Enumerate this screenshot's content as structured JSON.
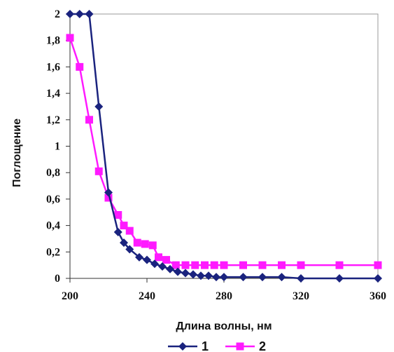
{
  "chart_data": {
    "type": "line",
    "title": "",
    "xlabel": "Длина волны, нм",
    "ylabel": "Поглощение",
    "xlim": [
      200,
      360
    ],
    "ylim": [
      0,
      2
    ],
    "x_ticks": [
      "200",
      "240",
      "280",
      "320",
      "360"
    ],
    "y_ticks": [
      "0",
      "0,2",
      "0,4",
      "0,6",
      "0,8",
      "1",
      "1,2",
      "1,4",
      "1,6",
      "1,8",
      "2"
    ],
    "grid": false,
    "legend_position": "bottom",
    "series": [
      {
        "name": "1",
        "color": "#1a237e",
        "marker": "diamond",
        "points": [
          [
            200,
            2.0
          ],
          [
            205,
            2.0
          ],
          [
            210,
            2.0
          ],
          [
            215,
            1.3
          ],
          [
            220,
            0.65
          ],
          [
            225,
            0.35
          ],
          [
            228,
            0.27
          ],
          [
            231,
            0.22
          ],
          [
            236,
            0.16
          ],
          [
            240,
            0.14
          ],
          [
            244,
            0.11
          ],
          [
            248,
            0.09
          ],
          [
            252,
            0.07
          ],
          [
            256,
            0.05
          ],
          [
            260,
            0.04
          ],
          [
            264,
            0.03
          ],
          [
            268,
            0.02
          ],
          [
            272,
            0.02
          ],
          [
            276,
            0.01
          ],
          [
            280,
            0.01
          ],
          [
            290,
            0.01
          ],
          [
            300,
            0.01
          ],
          [
            310,
            0.01
          ],
          [
            320,
            0.0
          ],
          [
            340,
            0.0
          ],
          [
            360,
            0.0
          ]
        ]
      },
      {
        "name": "2",
        "color": "#ff1aff",
        "marker": "square",
        "points": [
          [
            200,
            1.82
          ],
          [
            205,
            1.6
          ],
          [
            210,
            1.2
          ],
          [
            215,
            0.81
          ],
          [
            220,
            0.61
          ],
          [
            225,
            0.48
          ],
          [
            228,
            0.4
          ],
          [
            231,
            0.36
          ],
          [
            235,
            0.27
          ],
          [
            239,
            0.26
          ],
          [
            243,
            0.25
          ],
          [
            246,
            0.16
          ],
          [
            250,
            0.14
          ],
          [
            255,
            0.1
          ],
          [
            260,
            0.1
          ],
          [
            265,
            0.1
          ],
          [
            270,
            0.1
          ],
          [
            275,
            0.1
          ],
          [
            280,
            0.1
          ],
          [
            290,
            0.1
          ],
          [
            300,
            0.1
          ],
          [
            310,
            0.1
          ],
          [
            320,
            0.1
          ],
          [
            340,
            0.1
          ],
          [
            360,
            0.1
          ]
        ]
      }
    ]
  }
}
